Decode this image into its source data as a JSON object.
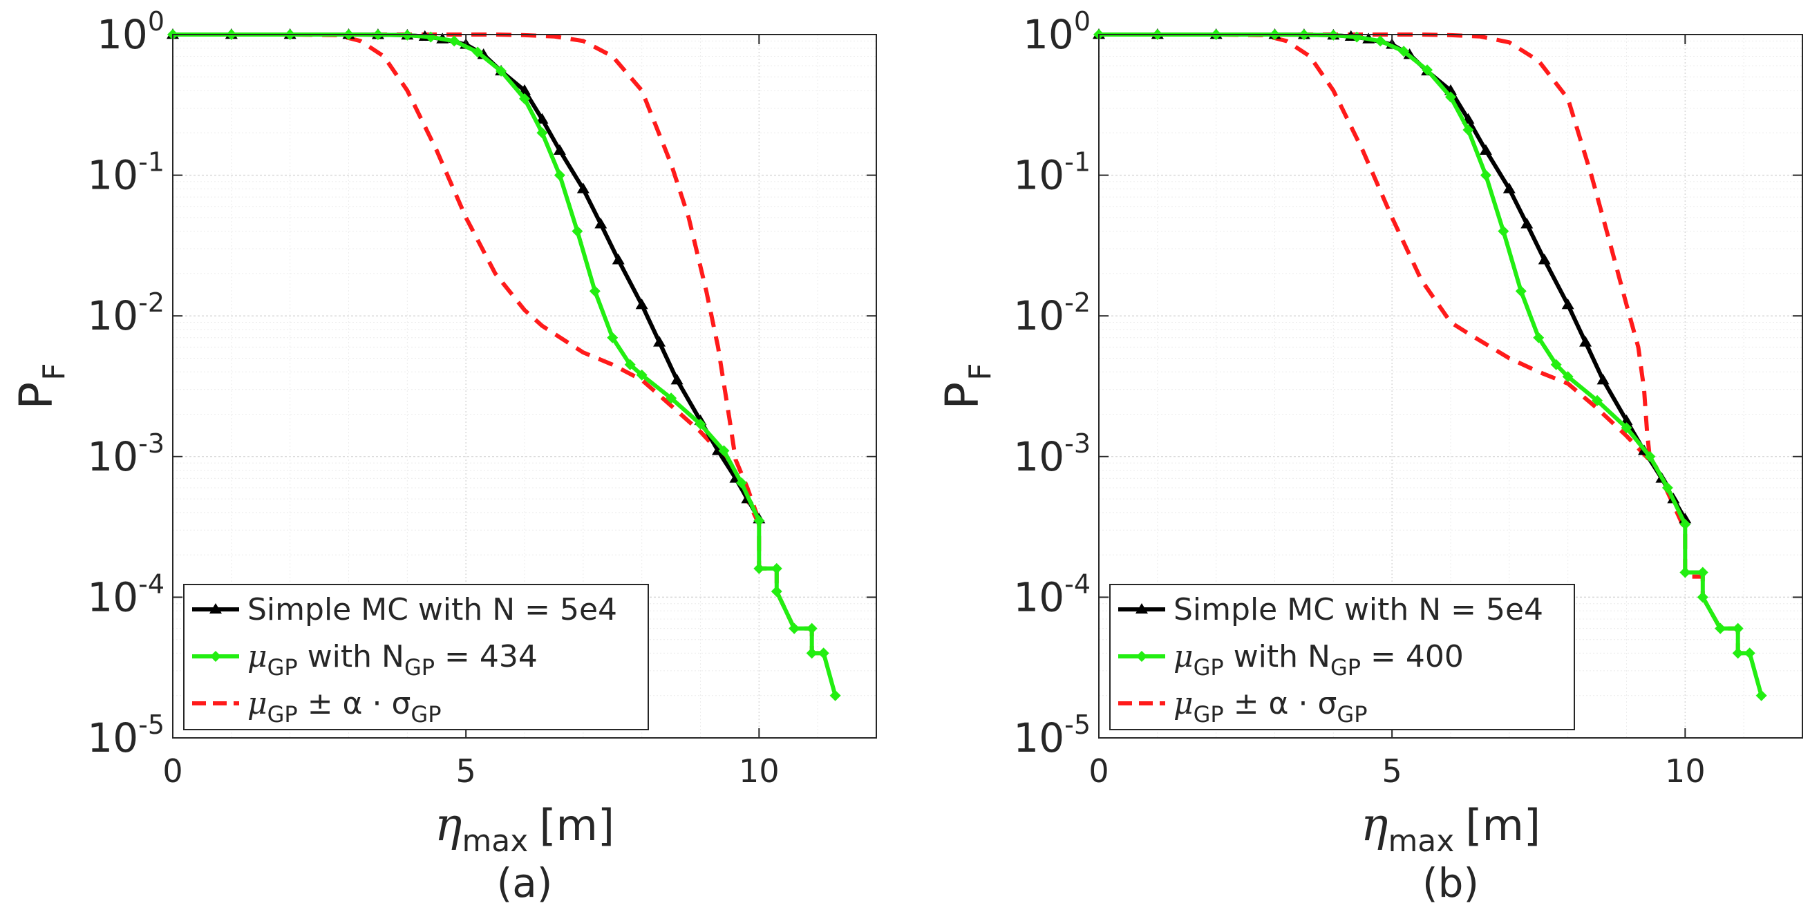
{
  "figure": {
    "panels": [
      "(a)",
      "(b)"
    ]
  },
  "colors": {
    "mc": "#000000",
    "gp": "#22ee11",
    "band": "#ff1a1a",
    "axis": "#262626",
    "grid": "#d9d9d9"
  },
  "chart_data": [
    {
      "type": "line",
      "panel_label": "(a)",
      "title": "",
      "xlabel": "η_max [m]",
      "xlabel_symbol": "η",
      "xlabel_sub": "max",
      "xlabel_unit": "[m]",
      "ylabel": "P_F",
      "ylabel_main": "P",
      "ylabel_sub": "F",
      "yscale": "log",
      "xlim": [
        0,
        12
      ],
      "ylim": [
        1e-05,
        1
      ],
      "xticks": [
        "0",
        "5",
        "10"
      ],
      "yticks": [
        {
          "base": "10",
          "exp": "0"
        },
        {
          "base": "10",
          "exp": "-1"
        },
        {
          "base": "10",
          "exp": "-2"
        },
        {
          "base": "10",
          "exp": "-3"
        },
        {
          "base": "10",
          "exp": "-4"
        },
        {
          "base": "10",
          "exp": "-5"
        }
      ],
      "grid": true,
      "legend_position": "bottom-left",
      "legend": [
        {
          "text": "Simple MC with N = 5e4",
          "pre": "",
          "sub": "",
          "mid": "",
          "sub2": "",
          "post": ""
        },
        {
          "text": "",
          "pre": "μ",
          "sub": "GP",
          "mid": " with N",
          "sub2": "GP",
          "post": " = 434"
        },
        {
          "text": "",
          "pre": "μ",
          "sub": "GP",
          "mid": " ± α · σ",
          "sub2": "GP",
          "post": ""
        }
      ],
      "series": [
        {
          "name": "Simple MC with N = 5e4",
          "style": "solid-triangle",
          "x": [
            0,
            1,
            2,
            3,
            3.5,
            4,
            4.3,
            4.6,
            5.0,
            5.3,
            5.6,
            6.0,
            6.3,
            6.6,
            7.0,
            7.3,
            7.6,
            8.0,
            8.3,
            8.6,
            9.0,
            9.3,
            9.6,
            9.8,
            10.0
          ],
          "y": [
            1,
            1,
            1,
            1,
            0.998,
            0.99,
            0.97,
            0.93,
            0.85,
            0.72,
            0.55,
            0.4,
            0.25,
            0.15,
            0.08,
            0.045,
            0.025,
            0.012,
            0.0065,
            0.0035,
            0.0018,
            0.0011,
            0.0007,
            0.0005,
            0.00036
          ]
        },
        {
          "name": "μGP with NGP = 434",
          "style": "solid-diamond",
          "x": [
            0,
            1,
            2,
            3,
            3.5,
            4,
            4.4,
            4.8,
            5.2,
            5.6,
            6.0,
            6.3,
            6.6,
            6.9,
            7.2,
            7.5,
            7.8,
            8.0,
            8.5,
            9.0,
            9.4,
            9.7,
            10.0,
            10.0,
            10.3,
            10.3,
            10.6,
            10.6,
            10.9,
            10.9,
            11.1,
            11.1,
            11.3
          ],
          "y": [
            1,
            1,
            1,
            1,
            0.998,
            0.99,
            0.96,
            0.9,
            0.75,
            0.55,
            0.35,
            0.2,
            0.1,
            0.04,
            0.015,
            0.007,
            0.0045,
            0.0038,
            0.0026,
            0.0017,
            0.0011,
            0.00065,
            0.00035,
            0.00016,
            0.00016,
            0.00011,
            6e-05,
            6e-05,
            6e-05,
            4e-05,
            4e-05,
            4e-05,
            2e-05
          ]
        },
        {
          "name": "μGP + α·σGP",
          "style": "dashed",
          "x": [
            0,
            2,
            3,
            4,
            5,
            5.5,
            6.0,
            6.5,
            7.0,
            7.5,
            8.0,
            8.5,
            8.8,
            9.1,
            9.3,
            9.5,
            9.6,
            9.8,
            10.0
          ],
          "y": [
            1,
            1,
            1,
            1,
            1,
            1,
            0.99,
            0.97,
            0.9,
            0.7,
            0.4,
            0.12,
            0.05,
            0.015,
            0.006,
            0.0018,
            0.00095,
            0.0006,
            0.00035
          ]
        },
        {
          "name": "μGP − α·σGP",
          "style": "dashed",
          "x": [
            0,
            2,
            2.8,
            3.2,
            3.6,
            4.0,
            4.5,
            5.0,
            5.5,
            6.0,
            6.3,
            7.0,
            7.5,
            8.0,
            8.5,
            9.0,
            9.5,
            10.0,
            10.0,
            10.3,
            10.3,
            10.6,
            10.6,
            10.9,
            10.9,
            11.1,
            11.1
          ],
          "y": [
            1,
            1,
            0.99,
            0.9,
            0.7,
            0.4,
            0.15,
            0.05,
            0.02,
            0.011,
            0.0085,
            0.0055,
            0.0045,
            0.0035,
            0.0023,
            0.0015,
            0.0009,
            0.00033,
            0.00016,
            0.00016,
            0.00011,
            6e-05,
            6e-05,
            6e-05,
            4e-05,
            4e-05,
            4e-05
          ]
        }
      ]
    },
    {
      "type": "line",
      "panel_label": "(b)",
      "title": "",
      "xlabel": "η_max [m]",
      "xlabel_symbol": "η",
      "xlabel_sub": "max",
      "xlabel_unit": "[m]",
      "ylabel": "P_F",
      "ylabel_main": "P",
      "ylabel_sub": "F",
      "yscale": "log",
      "xlim": [
        0,
        12
      ],
      "ylim": [
        1e-05,
        1
      ],
      "xticks": [
        "0",
        "5",
        "10"
      ],
      "yticks": [
        {
          "base": "10",
          "exp": "0"
        },
        {
          "base": "10",
          "exp": "-1"
        },
        {
          "base": "10",
          "exp": "-2"
        },
        {
          "base": "10",
          "exp": "-3"
        },
        {
          "base": "10",
          "exp": "-4"
        },
        {
          "base": "10",
          "exp": "-5"
        }
      ],
      "grid": true,
      "legend_position": "bottom-left",
      "legend": [
        {
          "text": "Simple MC with N = 5e4",
          "pre": "",
          "sub": "",
          "mid": "",
          "sub2": "",
          "post": ""
        },
        {
          "text": "",
          "pre": "μ",
          "sub": "GP",
          "mid": " with N",
          "sub2": "GP",
          "post": " = 400"
        },
        {
          "text": "",
          "pre": "μ",
          "sub": "GP",
          "mid": " ± α · σ",
          "sub2": "GP",
          "post": ""
        }
      ],
      "series": [
        {
          "name": "Simple MC with N = 5e4",
          "style": "solid-triangle",
          "x": [
            0,
            1,
            2,
            3,
            3.5,
            4,
            4.3,
            4.6,
            5.0,
            5.3,
            5.6,
            6.0,
            6.3,
            6.6,
            7.0,
            7.3,
            7.6,
            8.0,
            8.3,
            8.6,
            9.0,
            9.3,
            9.6,
            9.8,
            10.0
          ],
          "y": [
            1,
            1,
            1,
            1,
            0.998,
            0.99,
            0.97,
            0.93,
            0.85,
            0.72,
            0.55,
            0.4,
            0.25,
            0.15,
            0.08,
            0.045,
            0.025,
            0.012,
            0.0065,
            0.0035,
            0.0018,
            0.0011,
            0.0007,
            0.0005,
            0.00036
          ]
        },
        {
          "name": "μGP with NGP = 400",
          "style": "solid-diamond",
          "x": [
            0,
            1,
            2,
            3,
            3.5,
            4,
            4.4,
            4.8,
            5.2,
            5.6,
            6.0,
            6.3,
            6.6,
            6.9,
            7.2,
            7.5,
            7.8,
            8.0,
            8.5,
            9.0,
            9.4,
            9.7,
            10.0,
            10.0,
            10.3,
            10.3,
            10.6,
            10.6,
            10.9,
            10.9,
            11.1,
            11.1,
            11.3
          ],
          "y": [
            1,
            1,
            1,
            1,
            0.998,
            0.99,
            0.96,
            0.9,
            0.76,
            0.56,
            0.36,
            0.21,
            0.1,
            0.04,
            0.015,
            0.007,
            0.0045,
            0.0037,
            0.0025,
            0.0016,
            0.001,
            0.0006,
            0.00033,
            0.00015,
            0.00015,
            0.0001,
            6e-05,
            6e-05,
            6e-05,
            4e-05,
            4e-05,
            4e-05,
            2e-05
          ]
        },
        {
          "name": "μGP + α·σGP",
          "style": "dashed",
          "x": [
            0,
            2,
            3,
            4,
            5,
            5.5,
            6.0,
            6.5,
            7.0,
            7.5,
            8.0,
            8.4,
            8.7,
            9.0,
            9.2,
            9.3,
            9.35,
            9.4,
            9.6,
            9.8,
            10.0
          ],
          "y": [
            1,
            1,
            1,
            1,
            1,
            1,
            0.99,
            0.97,
            0.88,
            0.65,
            0.35,
            0.1,
            0.035,
            0.012,
            0.006,
            0.003,
            0.0015,
            0.00095,
            0.0007,
            0.0005,
            0.00033
          ]
        },
        {
          "name": "μGP − α·σGP",
          "style": "dashed",
          "x": [
            0,
            2,
            2.8,
            3.2,
            3.6,
            4.0,
            4.5,
            5.0,
            5.5,
            6.0,
            6.3,
            7.0,
            7.5,
            8.0,
            8.5,
            9.0,
            9.5,
            10.0,
            10.0,
            10.3,
            10.3,
            10.6,
            10.6,
            10.9,
            10.9,
            11.1,
            11.1
          ],
          "y": [
            1,
            1,
            0.99,
            0.9,
            0.7,
            0.4,
            0.15,
            0.05,
            0.018,
            0.009,
            0.0075,
            0.005,
            0.004,
            0.0033,
            0.0022,
            0.0014,
            0.00085,
            0.0003,
            0.00014,
            0.00014,
            0.0001,
            6e-05,
            6e-05,
            6e-05,
            4e-05,
            4e-05,
            4e-05
          ]
        }
      ]
    }
  ]
}
